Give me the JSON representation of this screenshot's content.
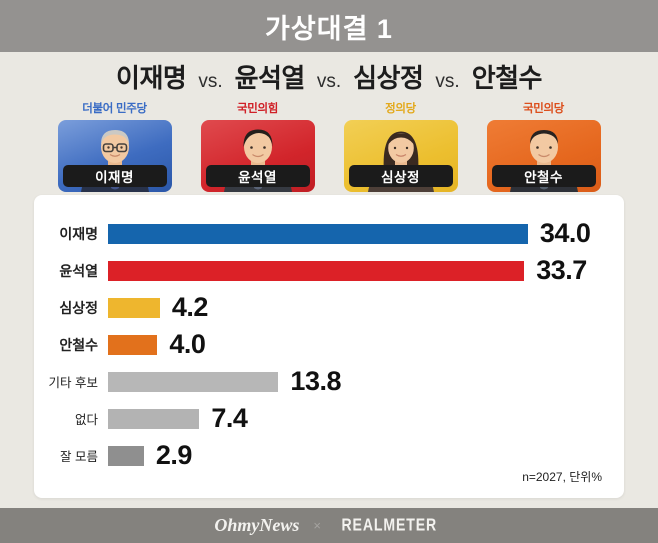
{
  "header": {
    "title": "가상대결 1"
  },
  "heading": {
    "names": [
      "이재명",
      "윤석열",
      "심상정",
      "안철수"
    ],
    "separator": "vs."
  },
  "candidates": [
    {
      "party": "더불어 민주당",
      "name": "이재명",
      "party_color": "#3a6cc5",
      "card_bg": "linear-gradient(160deg,#7b9edb 0%,#3e6cc0 55%,#2b57a8 100%)"
    },
    {
      "party": "국민의힘",
      "name": "윤석열",
      "party_color": "#d02027",
      "card_bg": "linear-gradient(160deg,#e04a4e 0%,#d2252b 60%,#c01e24 100%)"
    },
    {
      "party": "정의당",
      "name": "심상정",
      "party_color": "#e3a91c",
      "card_bg": "linear-gradient(160deg,#f2cf55 0%,#ecbf2f 60%,#e5b424 100%)"
    },
    {
      "party": "국민의당",
      "name": "안철수",
      "party_color": "#dc4f1d",
      "card_bg": "linear-gradient(160deg,#ef7c35 0%,#e5671e 60%,#da5c18 100%)"
    }
  ],
  "chart": {
    "rows": [
      {
        "label": "이재명",
        "value": "34.0",
        "color": "#1565ad"
      },
      {
        "label": "윤석열",
        "value": "33.7",
        "color": "#dc2127"
      },
      {
        "label": "심상정",
        "value": "4.2",
        "color": "#eeb62e"
      },
      {
        "label": "안철수",
        "value": "4.0",
        "color": "#e2711c"
      },
      {
        "label": "기타 후보",
        "value": "13.8",
        "color": "#b7b7b7"
      },
      {
        "label": "없다",
        "value": "7.4",
        "color": "#b3b3b3"
      },
      {
        "label": "잘 모름",
        "value": "2.9",
        "color": "#8f8f8f"
      }
    ],
    "note": "n=2027, 단위%"
  },
  "chart_data": {
    "type": "bar",
    "orientation": "horizontal",
    "title": "가상대결 1: 이재명 vs. 윤석열 vs. 심상정 vs. 안철수",
    "categories": [
      "이재명",
      "윤석열",
      "심상정",
      "안철수",
      "기타 후보",
      "없다",
      "잘 모름"
    ],
    "values": [
      34.0,
      33.7,
      4.2,
      4.0,
      13.8,
      7.4,
      2.9
    ],
    "bar_colors": [
      "#1565ad",
      "#dc2127",
      "#eeb62e",
      "#e2711c",
      "#b7b7b7",
      "#b3b3b3",
      "#8f8f8f"
    ],
    "unit": "%",
    "sample_size_label": "n=2027",
    "xlim": [
      0,
      40
    ],
    "value_labels": true,
    "grid": false,
    "legend": false
  },
  "footer": {
    "left_logo": "OhmyNews",
    "separator": "×",
    "right_logo": "REALMETER"
  }
}
